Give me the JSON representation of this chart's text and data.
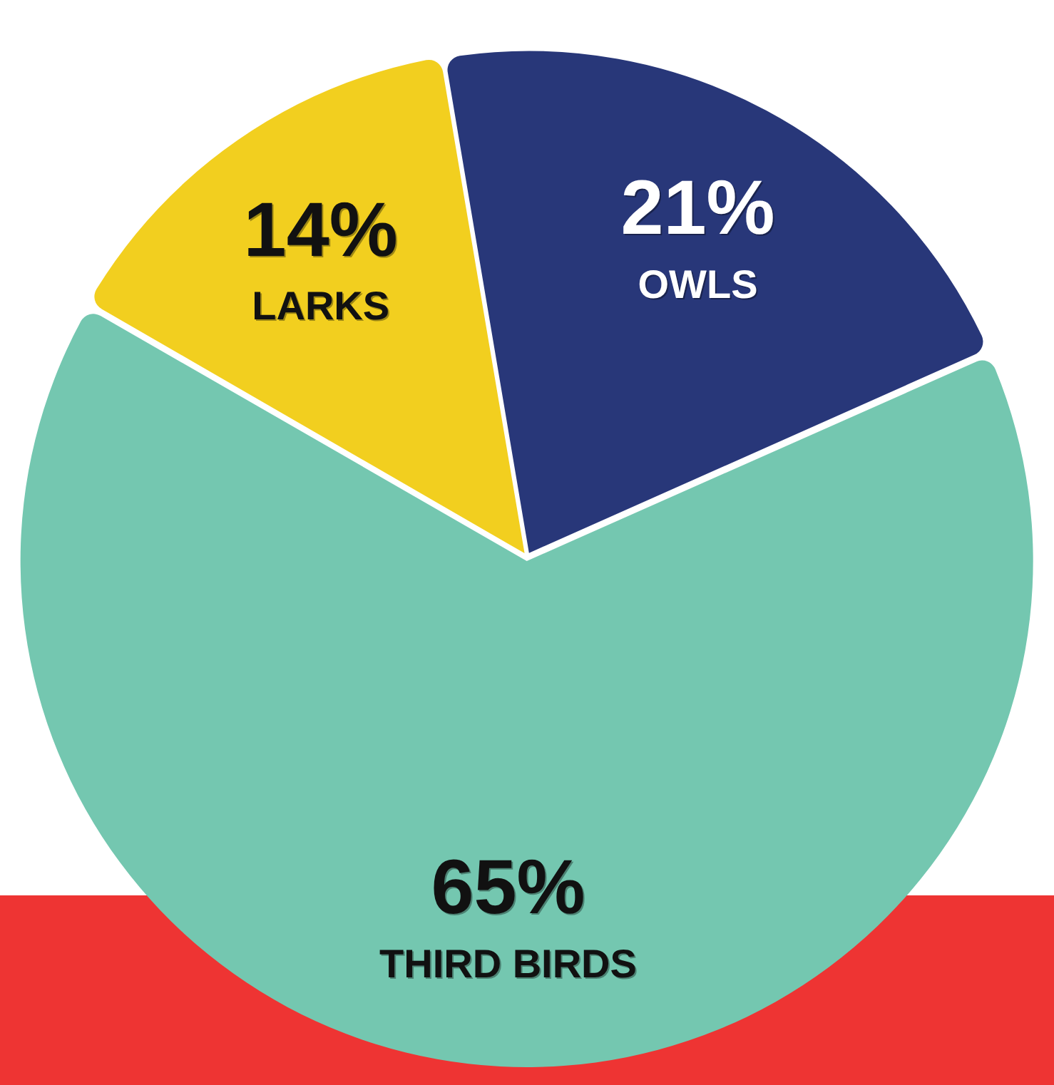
{
  "chart_data": {
    "type": "pie",
    "categories": [
      "LARKS",
      "OWLS",
      "THIRD BIRDS"
    ],
    "values": [
      14,
      21,
      65
    ],
    "colors": [
      "#f2cf1f",
      "#283779",
      "#74c7b0"
    ],
    "value_labels": [
      "14%",
      "21%",
      "65%"
    ],
    "legend": false
  }
}
